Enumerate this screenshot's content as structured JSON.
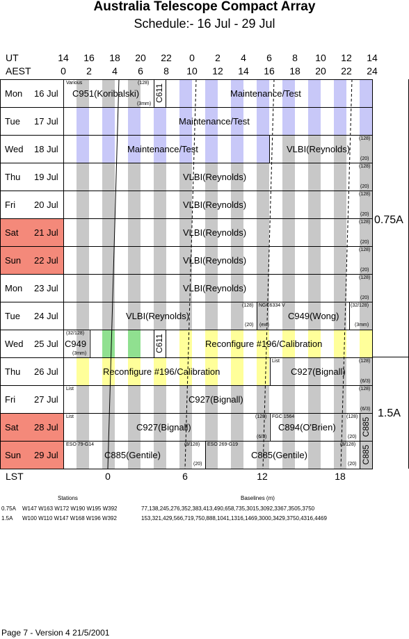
{
  "header": {
    "title": "Australia Telescope Compact Array",
    "subtitle": "Schedule:- 16 Jul - 29 Jul"
  },
  "axes": {
    "ut_label": "UT",
    "aest_label": "AEST",
    "lst_label": "LST",
    "ut_ticks": [
      "14",
      "16",
      "18",
      "20",
      "22",
      "0",
      "2",
      "4",
      "6",
      "8",
      "10",
      "12",
      "14"
    ],
    "aest_ticks": [
      "0",
      "2",
      "4",
      "6",
      "8",
      "10",
      "12",
      "14",
      "16",
      "18",
      "20",
      "22",
      "24"
    ],
    "lst_ticks": [
      "0",
      "6",
      "12",
      "18"
    ]
  },
  "days": [
    {
      "day": "Mon",
      "date": "16 Jul",
      "weekend": false
    },
    {
      "day": "Tue",
      "date": "17 Jul",
      "weekend": false
    },
    {
      "day": "Wed",
      "date": "18 Jul",
      "weekend": false
    },
    {
      "day": "Thu",
      "date": "19 Jul",
      "weekend": false
    },
    {
      "day": "Fri",
      "date": "20 Jul",
      "weekend": false
    },
    {
      "day": "Sat",
      "date": "21 Jul",
      "weekend": true
    },
    {
      "day": "Sun",
      "date": "22 Jul",
      "weekend": true
    },
    {
      "day": "Mon",
      "date": "23 Jul",
      "weekend": false
    },
    {
      "day": "Tue",
      "date": "24 Jul",
      "weekend": false
    },
    {
      "day": "Wed",
      "date": "25 Jul",
      "weekend": false
    },
    {
      "day": "Thu",
      "date": "26 Jul",
      "weekend": false
    },
    {
      "day": "Fri",
      "date": "27 Jul",
      "weekend": false
    },
    {
      "day": "Sat",
      "date": "28 Jul",
      "weekend": true
    },
    {
      "day": "Sun",
      "date": "29 Jul",
      "weekend": true
    }
  ],
  "labels": {
    "r0_various": "Various",
    "r0_c951": "C951(Koribalski)",
    "r0_128": "(128)",
    "r0_3mm": "(3mm)",
    "r0_c611": "C611",
    "r0_maint": "Maintenance/Test",
    "r1_maint": "Maintenance/Test",
    "r2_maint": "Maintenance/Test",
    "r2_vlbi": "VLBI(Reynolds)",
    "vlbi": "VLBI(Reynolds)",
    "s128": "(128)",
    "s20": "(20)",
    "r8_vlbi": "VLBI(Reynolds)",
    "r8_128": "(128)",
    "r8_20": "(20)",
    "r8_ngc": "NGC6334 V",
    "r8_ext": "(ext)",
    "r8_c949": "C949(Wong)",
    "r8_32128": "(32/128)",
    "r8_3mm": "(3mm)",
    "r9_32128": "(32/128)",
    "r9_c949": "C949",
    "r9_3mm": "(3mm)",
    "r9_c611": "C611",
    "reconf": "Reconfigure #196/Calibration",
    "list": "List",
    "c927": "C927(Bignall)",
    "s63": "(6/3)",
    "r12_fgc": "FGC 1564",
    "r12_c894": "C894(O'Brien)",
    "c885": "C885",
    "r13_eso79": "ESO 79-G14",
    "r13_9128": "(9/128)",
    "r13_eso269": "ESO 269-G19",
    "c885g": "C885(Gentile)",
    "cfg_075": "0.75A",
    "cfg_15": "1.5A"
  },
  "footer": {
    "stations_head": "Stations",
    "baselines_head": "Baselines (m)",
    "rows": [
      {
        "cfg": "0.75A",
        "stations": "W147 W163 W172 W190 W195 W392",
        "baselines": "77,138,245,276,352,383,413,490,658,735,3015,3092,3367,3505,3750"
      },
      {
        "cfg": "1.5A",
        "stations": "W100 W110 W147 W168 W196 W392",
        "baselines": "153,321,429,566,719,750,888,1041,1316,1469,3000,3429,3750,4316,4469"
      }
    ],
    "version": "Page 7 - Version 4  21/5/2001"
  },
  "colors": {
    "night": "#c8c8c8",
    "maintenance": "#c8c8f8",
    "reconfigure": "#ffff9a",
    "green": "#90e090",
    "weekend": "#f4897a"
  }
}
